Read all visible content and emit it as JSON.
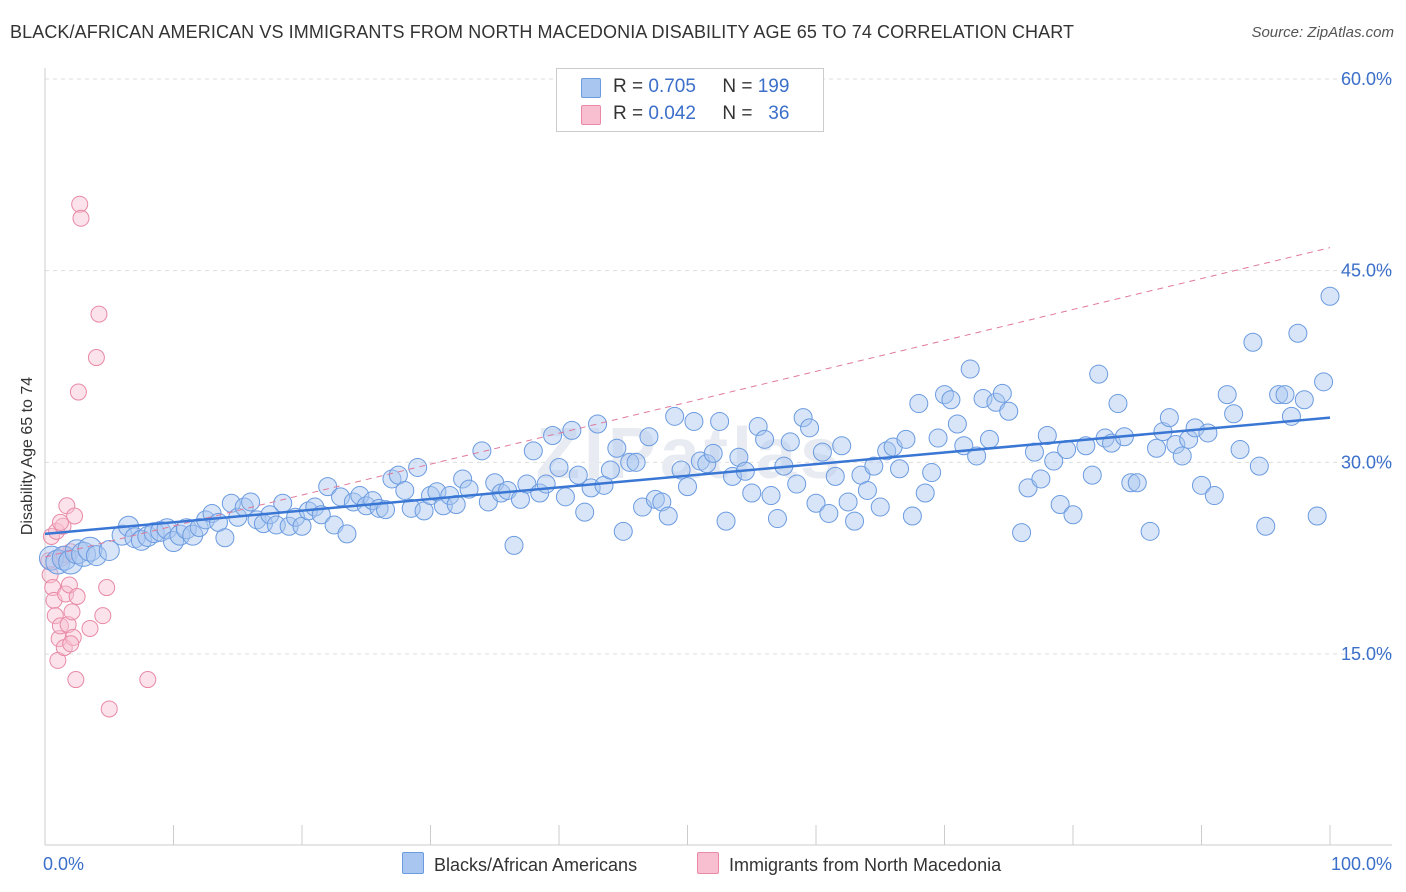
{
  "title": "BLACK/AFRICAN AMERICAN VS IMMIGRANTS FROM NORTH MACEDONIA DISABILITY AGE 65 TO 74 CORRELATION CHART",
  "source": "Source: ZipAtlas.com",
  "watermark": "ZIPatlas",
  "legend": {
    "r_label": "R =",
    "n_label": "N =",
    "rows": [
      {
        "r": "0.705",
        "n": "199",
        "color": "#a9c6f0",
        "border": "#6b9be0"
      },
      {
        "r": "0.042",
        "n": "36",
        "color": "#f8bfd0",
        "border": "#e88aa6"
      }
    ]
  },
  "bottom_legend": [
    {
      "label": "Blacks/African Americans",
      "color": "#a9c6f0",
      "border": "#6b9be0"
    },
    {
      "label": "Immigrants from North Macedonia",
      "color": "#f8bfd0",
      "border": "#e88aa6"
    }
  ],
  "colors": {
    "blue": "#3a77d4",
    "pink": "#e07a9a",
    "tick_text": "#3b6fc9",
    "grid": "#dddddd"
  },
  "chart_data": {
    "type": "scatter",
    "title": "BLACK/AFRICAN AMERICAN VS IMMIGRANTS FROM NORTH MACEDONIA DISABILITY AGE 65 TO 74 CORRELATION CHART",
    "xlabel": "",
    "ylabel": "Disability Age 65 to 74",
    "xlim": [
      0,
      100
    ],
    "ylim": [
      0,
      62
    ],
    "x_ticks": [
      0,
      100
    ],
    "x_tick_labels": [
      "0.0%",
      "100.0%"
    ],
    "y_ticks": [
      15,
      30,
      45,
      60
    ],
    "y_tick_labels": [
      "15.0%",
      "30.0%",
      "45.0%",
      "60.0%"
    ],
    "grid": true,
    "legend_position": "top-center",
    "series": [
      {
        "name": "Blacks/African Americans",
        "color": "#a9c6f0",
        "trend": {
          "x": [
            0,
            100
          ],
          "y": [
            24.4,
            33.5
          ]
        },
        "points": [
          [
            0.5,
            22.5
          ],
          [
            1,
            22.2
          ],
          [
            1.5,
            22.5
          ],
          [
            2,
            22.2
          ],
          [
            2.5,
            23
          ],
          [
            3,
            22.8
          ],
          [
            3.5,
            23.2
          ],
          [
            4,
            22.7
          ],
          [
            5,
            23.1
          ],
          [
            6,
            24.3
          ],
          [
            6.5,
            25
          ],
          [
            7,
            24.1
          ],
          [
            7.5,
            23.9
          ],
          [
            8,
            24.2
          ],
          [
            8.5,
            24.5
          ],
          [
            9,
            24.6
          ],
          [
            9.5,
            24.8
          ],
          [
            10,
            23.8
          ],
          [
            10.5,
            24.3
          ],
          [
            11,
            24.8
          ],
          [
            11.5,
            24.3
          ],
          [
            12,
            24.9
          ],
          [
            12.5,
            25.5
          ],
          [
            13,
            26
          ],
          [
            13.5,
            25.3
          ],
          [
            14,
            24.1
          ],
          [
            14.5,
            26.8
          ],
          [
            15,
            25.7
          ],
          [
            15.5,
            26.5
          ],
          [
            16,
            26.9
          ],
          [
            16.5,
            25.5
          ],
          [
            17,
            25.2
          ],
          [
            17.5,
            25.9
          ],
          [
            18,
            25.1
          ],
          [
            18.5,
            26.8
          ],
          [
            19,
            25
          ],
          [
            19.5,
            25.7
          ],
          [
            20,
            25
          ],
          [
            20.5,
            26.2
          ],
          [
            21,
            26.5
          ],
          [
            21.5,
            25.9
          ],
          [
            22,
            28.1
          ],
          [
            22.5,
            25.1
          ],
          [
            23,
            27.3
          ],
          [
            23.5,
            24.4
          ],
          [
            24,
            26.9
          ],
          [
            24.5,
            27.4
          ],
          [
            25,
            26.6
          ],
          [
            25.5,
            27
          ],
          [
            26,
            26.4
          ],
          [
            26.5,
            26.3
          ],
          [
            27,
            28.7
          ],
          [
            27.5,
            29
          ],
          [
            28,
            27.8
          ],
          [
            28.5,
            26.4
          ],
          [
            29,
            29.6
          ],
          [
            29.5,
            26.2
          ],
          [
            30,
            27.4
          ],
          [
            30.5,
            27.7
          ],
          [
            31,
            26.6
          ],
          [
            31.5,
            27.4
          ],
          [
            32,
            26.7
          ],
          [
            32.5,
            28.7
          ],
          [
            33,
            27.9
          ],
          [
            34,
            30.9
          ],
          [
            34.5,
            26.9
          ],
          [
            35,
            28.4
          ],
          [
            35.5,
            27.6
          ],
          [
            36,
            27.8
          ],
          [
            36.5,
            23.5
          ],
          [
            37,
            27.1
          ],
          [
            37.5,
            28.3
          ],
          [
            38,
            30.9
          ],
          [
            38.5,
            27.6
          ],
          [
            39,
            28.3
          ],
          [
            39.5,
            32.1
          ],
          [
            40,
            29.6
          ],
          [
            40.5,
            27.3
          ],
          [
            41,
            32.5
          ],
          [
            41.5,
            29
          ],
          [
            42,
            26.1
          ],
          [
            42.5,
            28
          ],
          [
            43,
            33
          ],
          [
            43.5,
            28.2
          ],
          [
            44,
            29.4
          ],
          [
            44.5,
            31.1
          ],
          [
            45,
            24.6
          ],
          [
            45.5,
            30
          ],
          [
            46,
            30
          ],
          [
            46.5,
            26.5
          ],
          [
            47,
            32
          ],
          [
            47.5,
            27.1
          ],
          [
            48,
            26.9
          ],
          [
            48.5,
            25.8
          ],
          [
            49,
            33.6
          ],
          [
            49.5,
            29.4
          ],
          [
            50,
            28.1
          ],
          [
            50.5,
            33.2
          ],
          [
            51,
            30.1
          ],
          [
            51.5,
            29.9
          ],
          [
            52,
            30.7
          ],
          [
            52.5,
            33.2
          ],
          [
            53,
            25.4
          ],
          [
            53.5,
            28.9
          ],
          [
            54,
            30.4
          ],
          [
            54.5,
            29.3
          ],
          [
            55,
            27.6
          ],
          [
            55.5,
            32.8
          ],
          [
            56,
            31.8
          ],
          [
            56.5,
            27.4
          ],
          [
            57,
            25.6
          ],
          [
            57.5,
            29.7
          ],
          [
            58,
            31.6
          ],
          [
            58.5,
            28.3
          ],
          [
            59,
            33.5
          ],
          [
            59.5,
            32.7
          ],
          [
            60,
            26.8
          ],
          [
            60.5,
            30.8
          ],
          [
            61,
            26
          ],
          [
            61.5,
            28.9
          ],
          [
            62,
            31.3
          ],
          [
            62.5,
            26.9
          ],
          [
            63,
            25.4
          ],
          [
            63.5,
            29
          ],
          [
            64,
            27.8
          ],
          [
            64.5,
            29.7
          ],
          [
            65,
            26.5
          ],
          [
            65.5,
            30.9
          ],
          [
            66,
            31.2
          ],
          [
            66.5,
            29.5
          ],
          [
            67,
            31.8
          ],
          [
            67.5,
            25.8
          ],
          [
            68,
            34.6
          ],
          [
            68.5,
            27.6
          ],
          [
            69,
            29.2
          ],
          [
            69.5,
            31.9
          ],
          [
            70,
            35.3
          ],
          [
            70.5,
            34.9
          ],
          [
            71,
            33
          ],
          [
            71.5,
            31.3
          ],
          [
            72,
            37.3
          ],
          [
            72.5,
            30.5
          ],
          [
            73,
            35
          ],
          [
            73.5,
            31.8
          ],
          [
            74,
            34.7
          ],
          [
            74.5,
            35.4
          ],
          [
            75,
            34
          ],
          [
            76,
            24.5
          ],
          [
            76.5,
            28
          ],
          [
            77,
            30.8
          ],
          [
            77.5,
            28.7
          ],
          [
            78,
            32.1
          ],
          [
            78.5,
            30.1
          ],
          [
            79,
            26.7
          ],
          [
            79.5,
            31
          ],
          [
            80,
            25.9
          ],
          [
            81,
            31.3
          ],
          [
            81.5,
            29
          ],
          [
            82,
            36.9
          ],
          [
            82.5,
            31.9
          ],
          [
            83,
            31.5
          ],
          [
            83.5,
            34.6
          ],
          [
            84,
            32
          ],
          [
            84.5,
            28.4
          ],
          [
            85,
            28.4
          ],
          [
            86,
            24.6
          ],
          [
            86.5,
            31.1
          ],
          [
            87,
            32.4
          ],
          [
            87.5,
            33.5
          ],
          [
            88,
            31.4
          ],
          [
            88.5,
            30.5
          ],
          [
            89,
            31.8
          ],
          [
            89.5,
            32.7
          ],
          [
            90,
            28.2
          ],
          [
            90.5,
            32.3
          ],
          [
            91,
            27.4
          ],
          [
            92,
            35.3
          ],
          [
            92.5,
            33.8
          ],
          [
            93,
            31
          ],
          [
            94,
            39.4
          ],
          [
            94.5,
            29.7
          ],
          [
            95,
            25
          ],
          [
            96,
            35.3
          ],
          [
            96.5,
            35.3
          ],
          [
            97,
            33.6
          ],
          [
            97.5,
            40.1
          ],
          [
            98,
            34.9
          ],
          [
            99,
            25.8
          ],
          [
            99.5,
            36.3
          ],
          [
            100,
            43
          ]
        ]
      },
      {
        "name": "Immigrants from North Macedonia",
        "color": "#f8bfd0",
        "trend": {
          "x": [
            0,
            100
          ],
          "y": [
            22.6,
            46.8
          ]
        },
        "points": [
          [
            0.3,
            22.3
          ],
          [
            0.4,
            21.2
          ],
          [
            0.5,
            24.2
          ],
          [
            0.6,
            20.2
          ],
          [
            0.7,
            19.2
          ],
          [
            0.8,
            18
          ],
          [
            0.9,
            24.6
          ],
          [
            1,
            14.5
          ],
          [
            1.1,
            16.2
          ],
          [
            1.2,
            17.2
          ],
          [
            1.3,
            22.5
          ],
          [
            1.4,
            25
          ],
          [
            1.5,
            15.5
          ],
          [
            1.6,
            19.7
          ],
          [
            1.7,
            26.6
          ],
          [
            1.8,
            17.3
          ],
          [
            1.9,
            20.4
          ],
          [
            2,
            23
          ],
          [
            2.1,
            18.3
          ],
          [
            2.2,
            16.3
          ],
          [
            2.3,
            25.8
          ],
          [
            2.4,
            13
          ],
          [
            2.5,
            19.5
          ],
          [
            2.6,
            35.5
          ],
          [
            2.7,
            50.2
          ],
          [
            2.8,
            49.1
          ],
          [
            3.5,
            17
          ],
          [
            4,
            38.2
          ],
          [
            4.2,
            41.6
          ],
          [
            4.5,
            18
          ],
          [
            4.8,
            20.2
          ],
          [
            5,
            10.7
          ],
          [
            8,
            13
          ],
          [
            1.5,
            22.8
          ],
          [
            2,
            15.8
          ],
          [
            1.2,
            25.3
          ]
        ]
      }
    ]
  }
}
